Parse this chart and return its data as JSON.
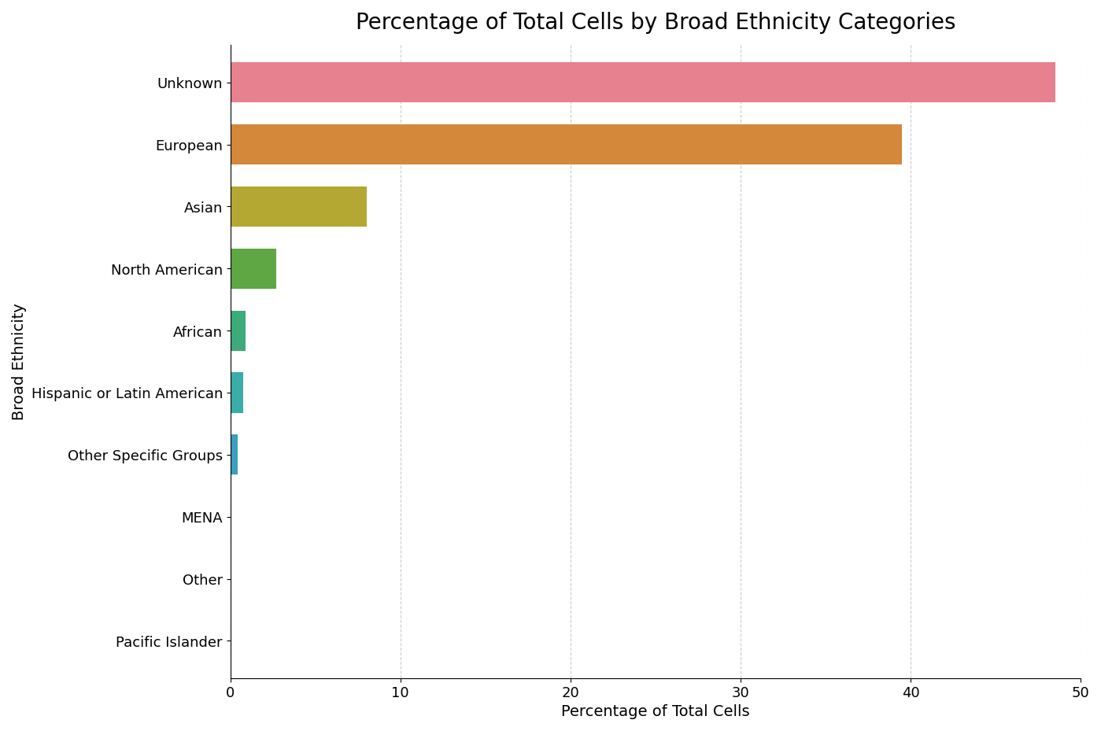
{
  "title": "Percentage of Total Cells by Broad Ethnicity Categories",
  "xlabel": "Percentage of Total Cells",
  "ylabel": "Broad Ethnicity",
  "categories": [
    "Unknown",
    "European",
    "Asian",
    "North American",
    "African",
    "Hispanic or Latin American",
    "Other Specific Groups",
    "MENA",
    "Other",
    "Pacific Islander"
  ],
  "values": [
    48.5,
    39.5,
    8.0,
    2.7,
    0.9,
    0.75,
    0.45,
    0.05,
    0.03,
    0.02
  ],
  "colors": [
    "#e8818f",
    "#d4883a",
    "#b5a832",
    "#5fa644",
    "#3daa7a",
    "#3aada8",
    "#3a9fc0",
    "#4a70b8",
    "#4a70b8",
    "#4a70b8"
  ],
  "xlim": [
    0,
    50
  ],
  "xticks": [
    0,
    10,
    20,
    30,
    40,
    50
  ],
  "background_color": "#ffffff",
  "grid_color": "#cccccc",
  "title_fontsize": 20,
  "label_fontsize": 14,
  "tick_fontsize": 13,
  "bar_height": 0.65
}
